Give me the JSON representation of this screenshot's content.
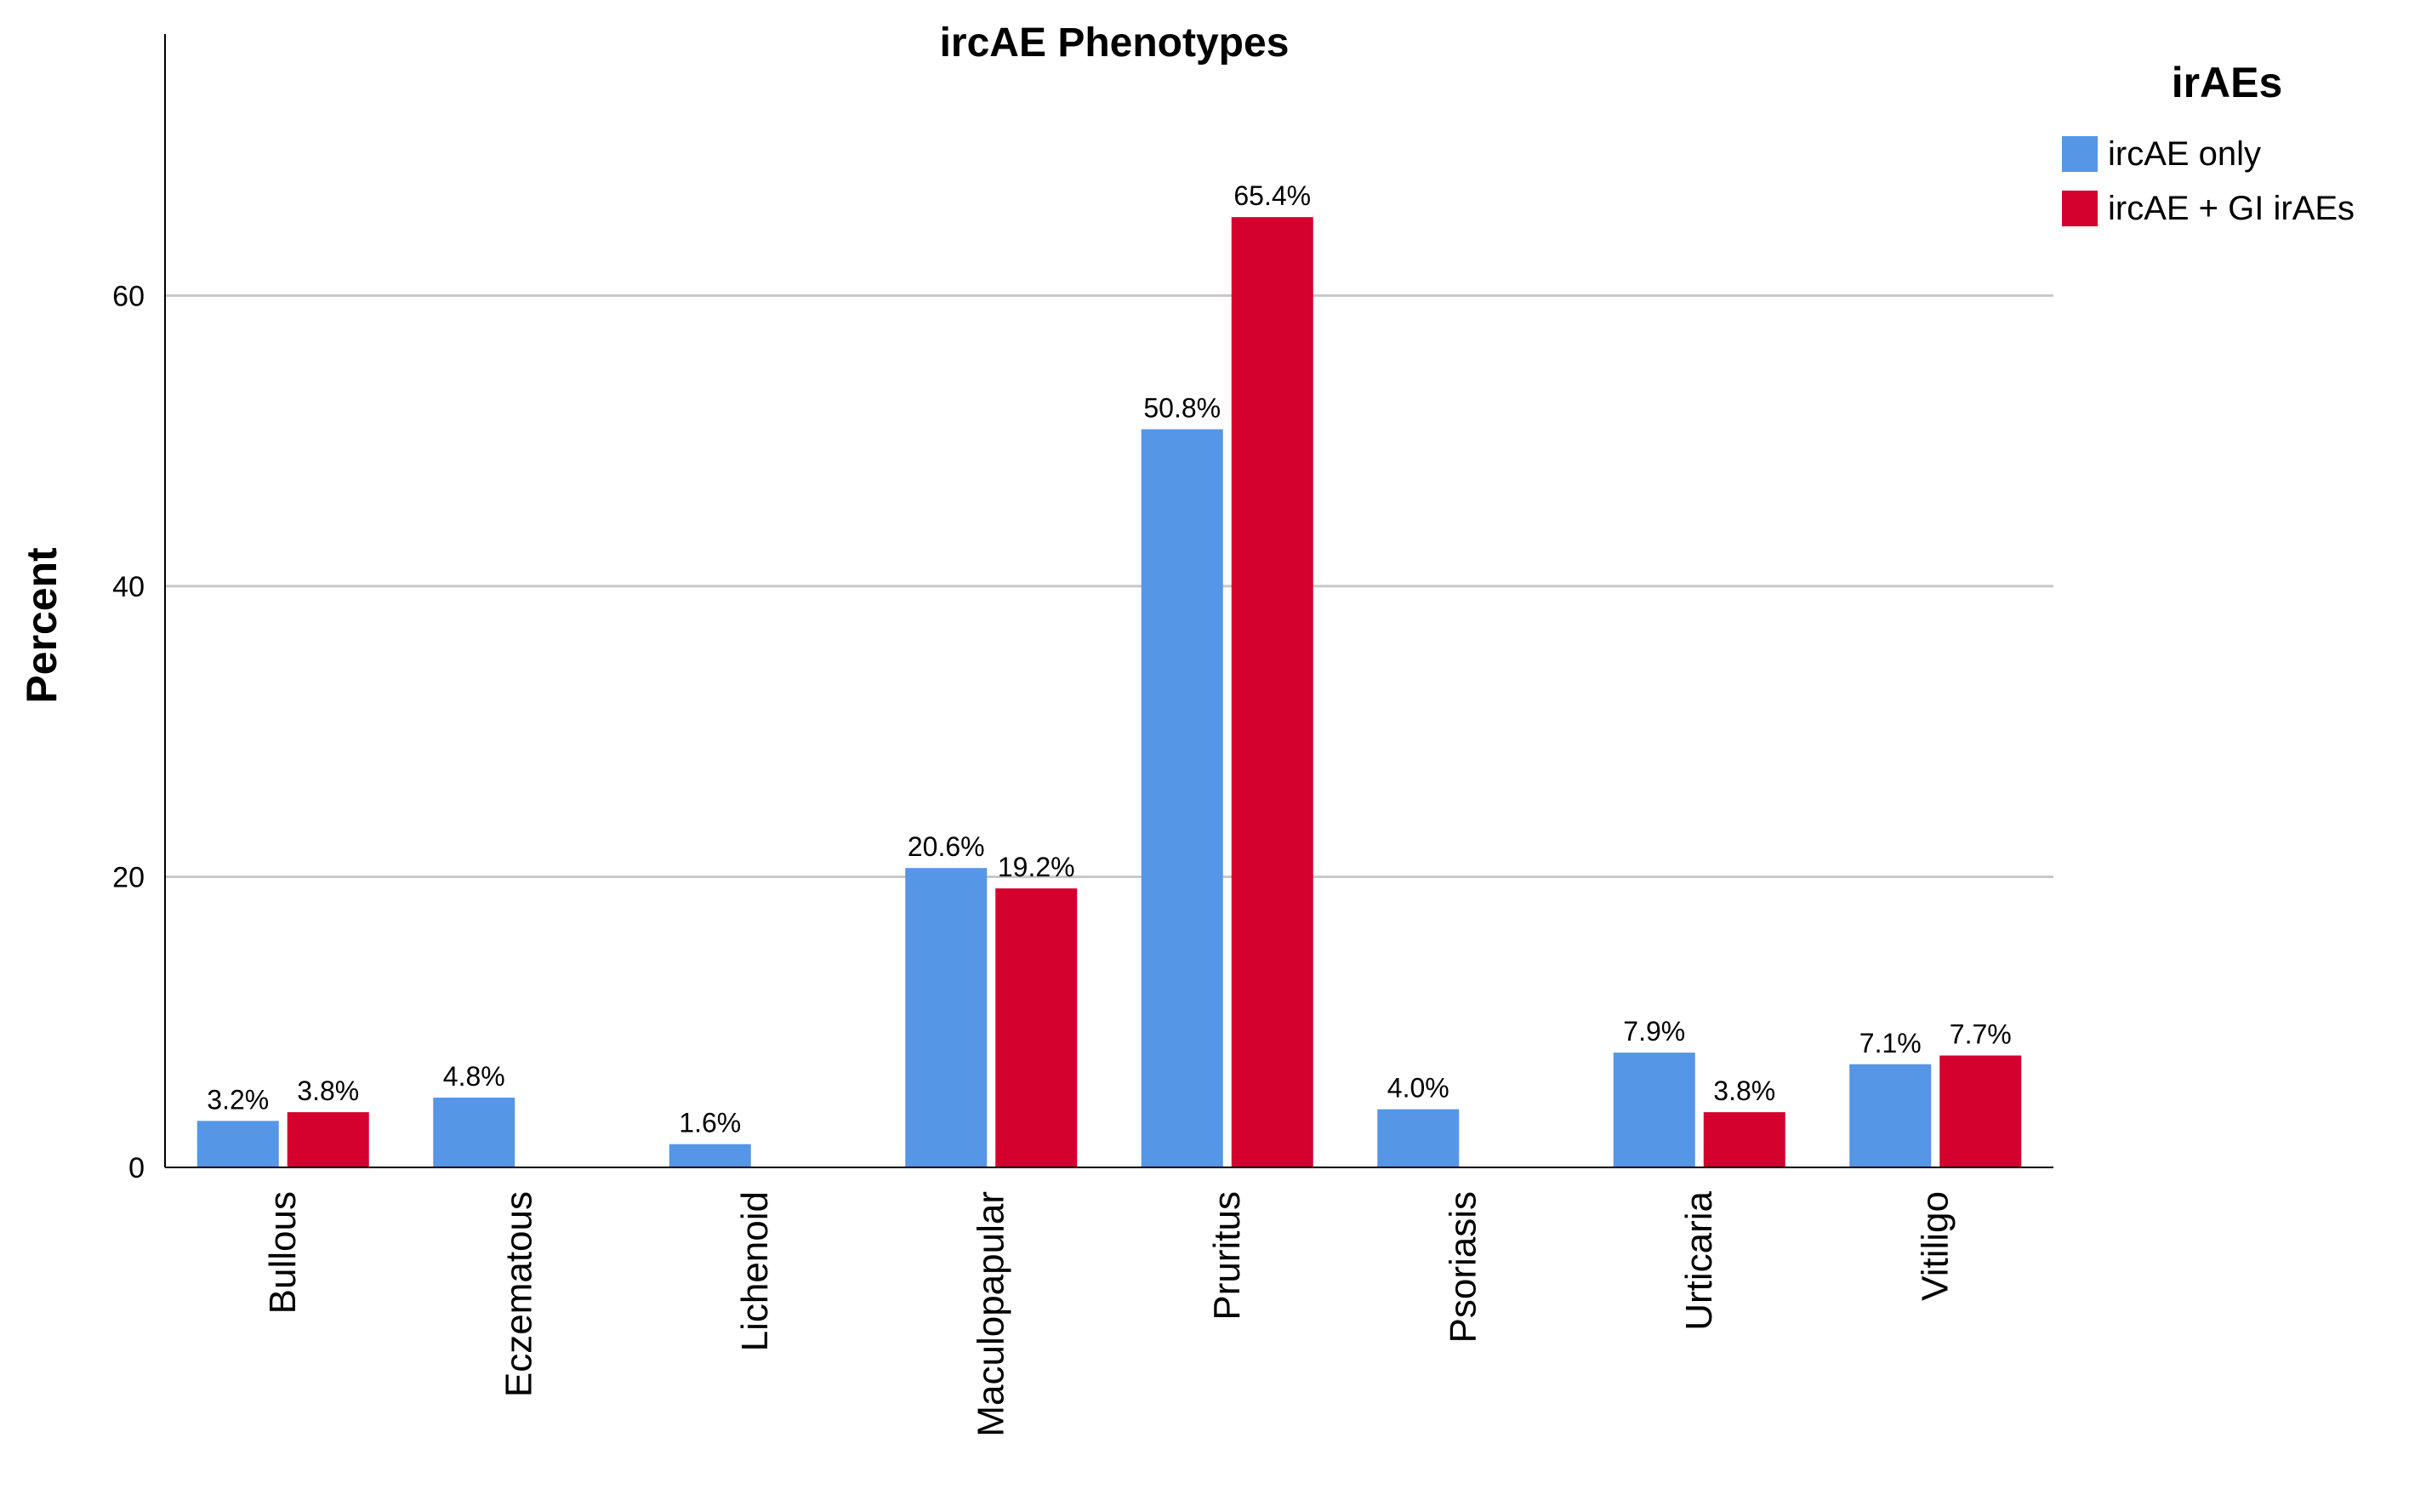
{
  "chart_data": {
    "type": "bar",
    "title": "ircAE Phenotypes",
    "xlabel": "",
    "ylabel": "Percent",
    "ylim": [
      0,
      78
    ],
    "yticks": [
      0,
      20,
      40,
      60
    ],
    "grid": true,
    "legend": {
      "title": "irAEs",
      "position": "top-right"
    },
    "categories": [
      "Bullous",
      "Eczematous",
      "Lichenoid",
      "Maculopapular",
      "Pruritus",
      "Psoriasis",
      "Urticaria",
      "Vitiligo"
    ],
    "series": [
      {
        "name": "ircAE only",
        "color": "#5596e6",
        "values": [
          3.2,
          4.8,
          1.6,
          20.6,
          50.8,
          4.0,
          7.9,
          7.1
        ],
        "labels": [
          "3.2%",
          "4.8%",
          "1.6%",
          "20.6%",
          "50.8%",
          "4.0%",
          "7.9%",
          "7.1%"
        ]
      },
      {
        "name": "ircAE + GI irAEs",
        "color": "#d4002e",
        "values": [
          3.8,
          null,
          null,
          19.2,
          65.4,
          null,
          3.8,
          7.7
        ],
        "labels": [
          "3.8%",
          null,
          null,
          "19.2%",
          "65.4%",
          null,
          "3.8%",
          "7.7%"
        ]
      }
    ]
  }
}
